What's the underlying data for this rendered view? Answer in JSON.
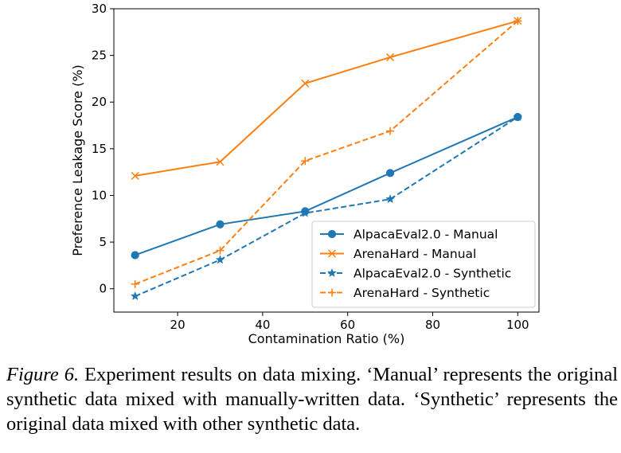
{
  "chart_data": {
    "type": "line",
    "xlabel": "Contamination Ratio (%)",
    "ylabel": "Preference Leakage Score (%)",
    "x": [
      10,
      30,
      50,
      70,
      100
    ],
    "xlim": [
      5,
      105
    ],
    "ylim": [
      -2.5,
      30
    ],
    "xticks": [
      20,
      40,
      60,
      80,
      100
    ],
    "yticks": [
      0,
      5,
      10,
      15,
      20,
      25,
      30
    ],
    "grid": false,
    "legend_position": "lower-right",
    "series": [
      {
        "name": "AlpacaEval2.0 - Manual",
        "values": [
          3.6,
          6.9,
          8.3,
          12.4,
          18.4
        ],
        "color": "#1f77b4",
        "linestyle": "solid",
        "marker": "circle"
      },
      {
        "name": "ArenaHard - Manual",
        "values": [
          12.1,
          13.6,
          22.0,
          24.8,
          28.7
        ],
        "color": "#ff7f0e",
        "linestyle": "solid",
        "marker": "x"
      },
      {
        "name": "AlpacaEval2.0 - Synthetic",
        "values": [
          -0.8,
          3.1,
          8.1,
          9.6,
          18.4
        ],
        "color": "#1f77b4",
        "linestyle": "dashed",
        "marker": "star"
      },
      {
        "name": "ArenaHard - Synthetic",
        "values": [
          0.5,
          4.1,
          13.7,
          16.9,
          28.7
        ],
        "color": "#ff7f0e",
        "linestyle": "dashed",
        "marker": "plus"
      }
    ]
  },
  "caption": {
    "label": "Figure 6.",
    "text": " Experiment results on data mixing. ‘Manual’ represents the original synthetic data mixed with manually-written data. ‘Synthetic’ represents the original data mixed with other synthetic data."
  }
}
